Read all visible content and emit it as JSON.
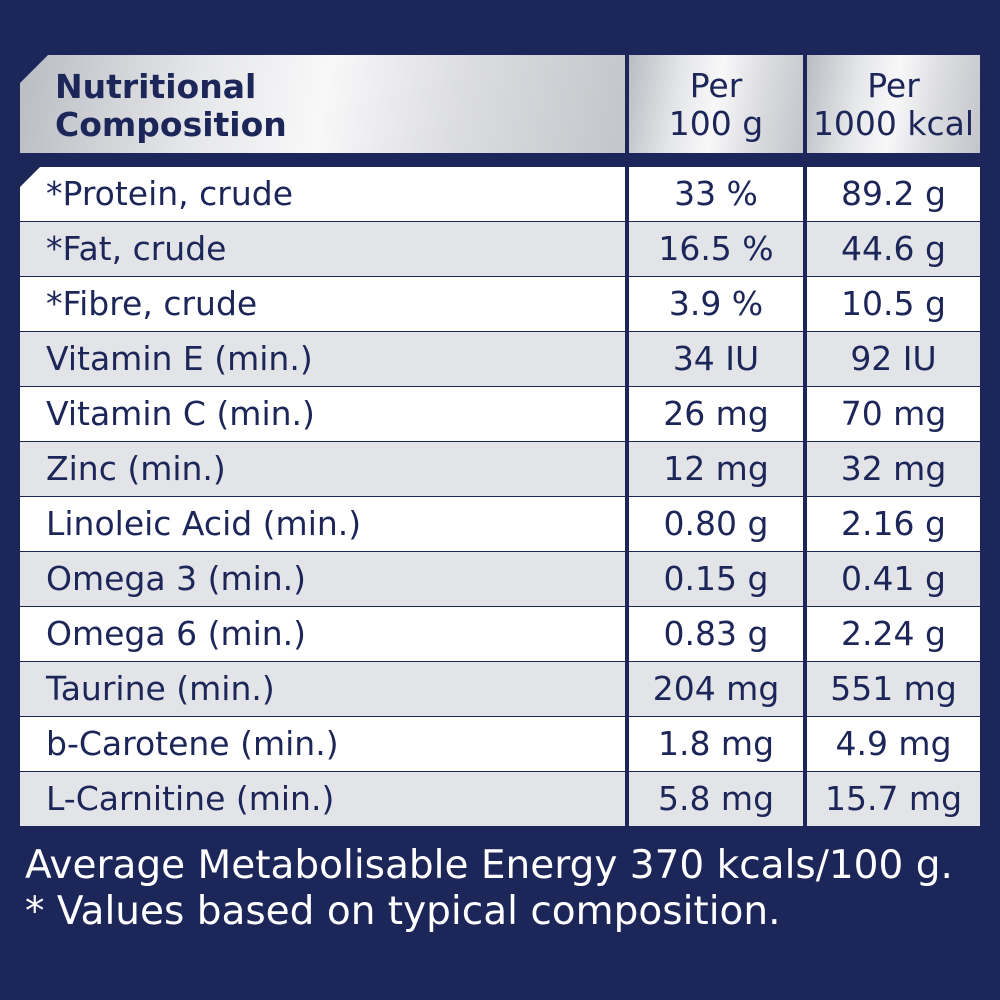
{
  "table": {
    "header": {
      "title": "Nutritional\nComposition",
      "col1": "Per\n100 g",
      "col2": "Per\n1000 kcal"
    },
    "rows": [
      {
        "name": "*Protein, crude",
        "per100g": "33 %",
        "per1000kcal": "89.2 g"
      },
      {
        "name": "*Fat, crude",
        "per100g": "16.5 %",
        "per1000kcal": "44.6 g"
      },
      {
        "name": "*Fibre, crude",
        "per100g": "3.9 %",
        "per1000kcal": "10.5 g"
      },
      {
        "name": "Vitamin E (min.)",
        "per100g": "34 IU",
        "per1000kcal": "92 IU"
      },
      {
        "name": "Vitamin C (min.)",
        "per100g": "26 mg",
        "per1000kcal": "70 mg"
      },
      {
        "name": "Zinc (min.)",
        "per100g": "12 mg",
        "per1000kcal": "32 mg"
      },
      {
        "name": "Linoleic Acid (min.)",
        "per100g": "0.80 g",
        "per1000kcal": "2.16 g"
      },
      {
        "name": "Omega 3 (min.)",
        "per100g": "0.15 g",
        "per1000kcal": "0.41 g"
      },
      {
        "name": "Omega 6 (min.)",
        "per100g": "0.83 g",
        "per1000kcal": "2.24 g"
      },
      {
        "name": "Taurine (min.)",
        "per100g": "204 mg",
        "per1000kcal": "551 mg"
      },
      {
        "name": "b-Carotene (min.)",
        "per100g": "1.8 mg",
        "per1000kcal": "4.9 mg"
      },
      {
        "name": "L-Carnitine (min.)",
        "per100g": "5.8 mg",
        "per1000kcal": "15.7 mg"
      }
    ]
  },
  "footer": {
    "energy_note": "Average Metabolisable Energy 370 kcals/100 g.",
    "values_note": "* Values based on typical composition."
  },
  "colors": {
    "background": "#1c2659",
    "text": "#1c2659",
    "row_alt": "#e3e4e8",
    "header_silver": "#dcdde1"
  }
}
